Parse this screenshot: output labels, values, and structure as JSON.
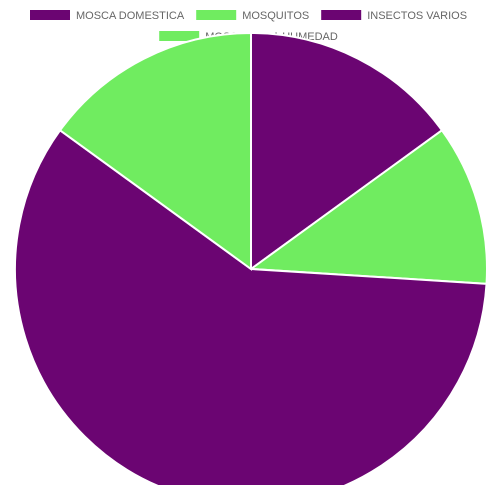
{
  "chart_data": {
    "type": "pie",
    "legend_position": "top",
    "categories": [
      "MOSCA DOMESTICA",
      "MOSQUITOS",
      "INSECTOS VARIOS",
      "MOSCA DE LA HUMEDAD"
    ],
    "slices": [
      {
        "label": "MOSCA DOMESTICA",
        "value": 15,
        "color": "#6b0572"
      },
      {
        "label": "MOSQUITOS",
        "value": 11,
        "color": "#70ec60"
      },
      {
        "label": "INSECTOS VARIOS",
        "value": 59,
        "color": "#6b0572"
      },
      {
        "label": "MOSCA DE LA HUMEDAD",
        "value": 15,
        "color": "#70ec60"
      }
    ]
  }
}
